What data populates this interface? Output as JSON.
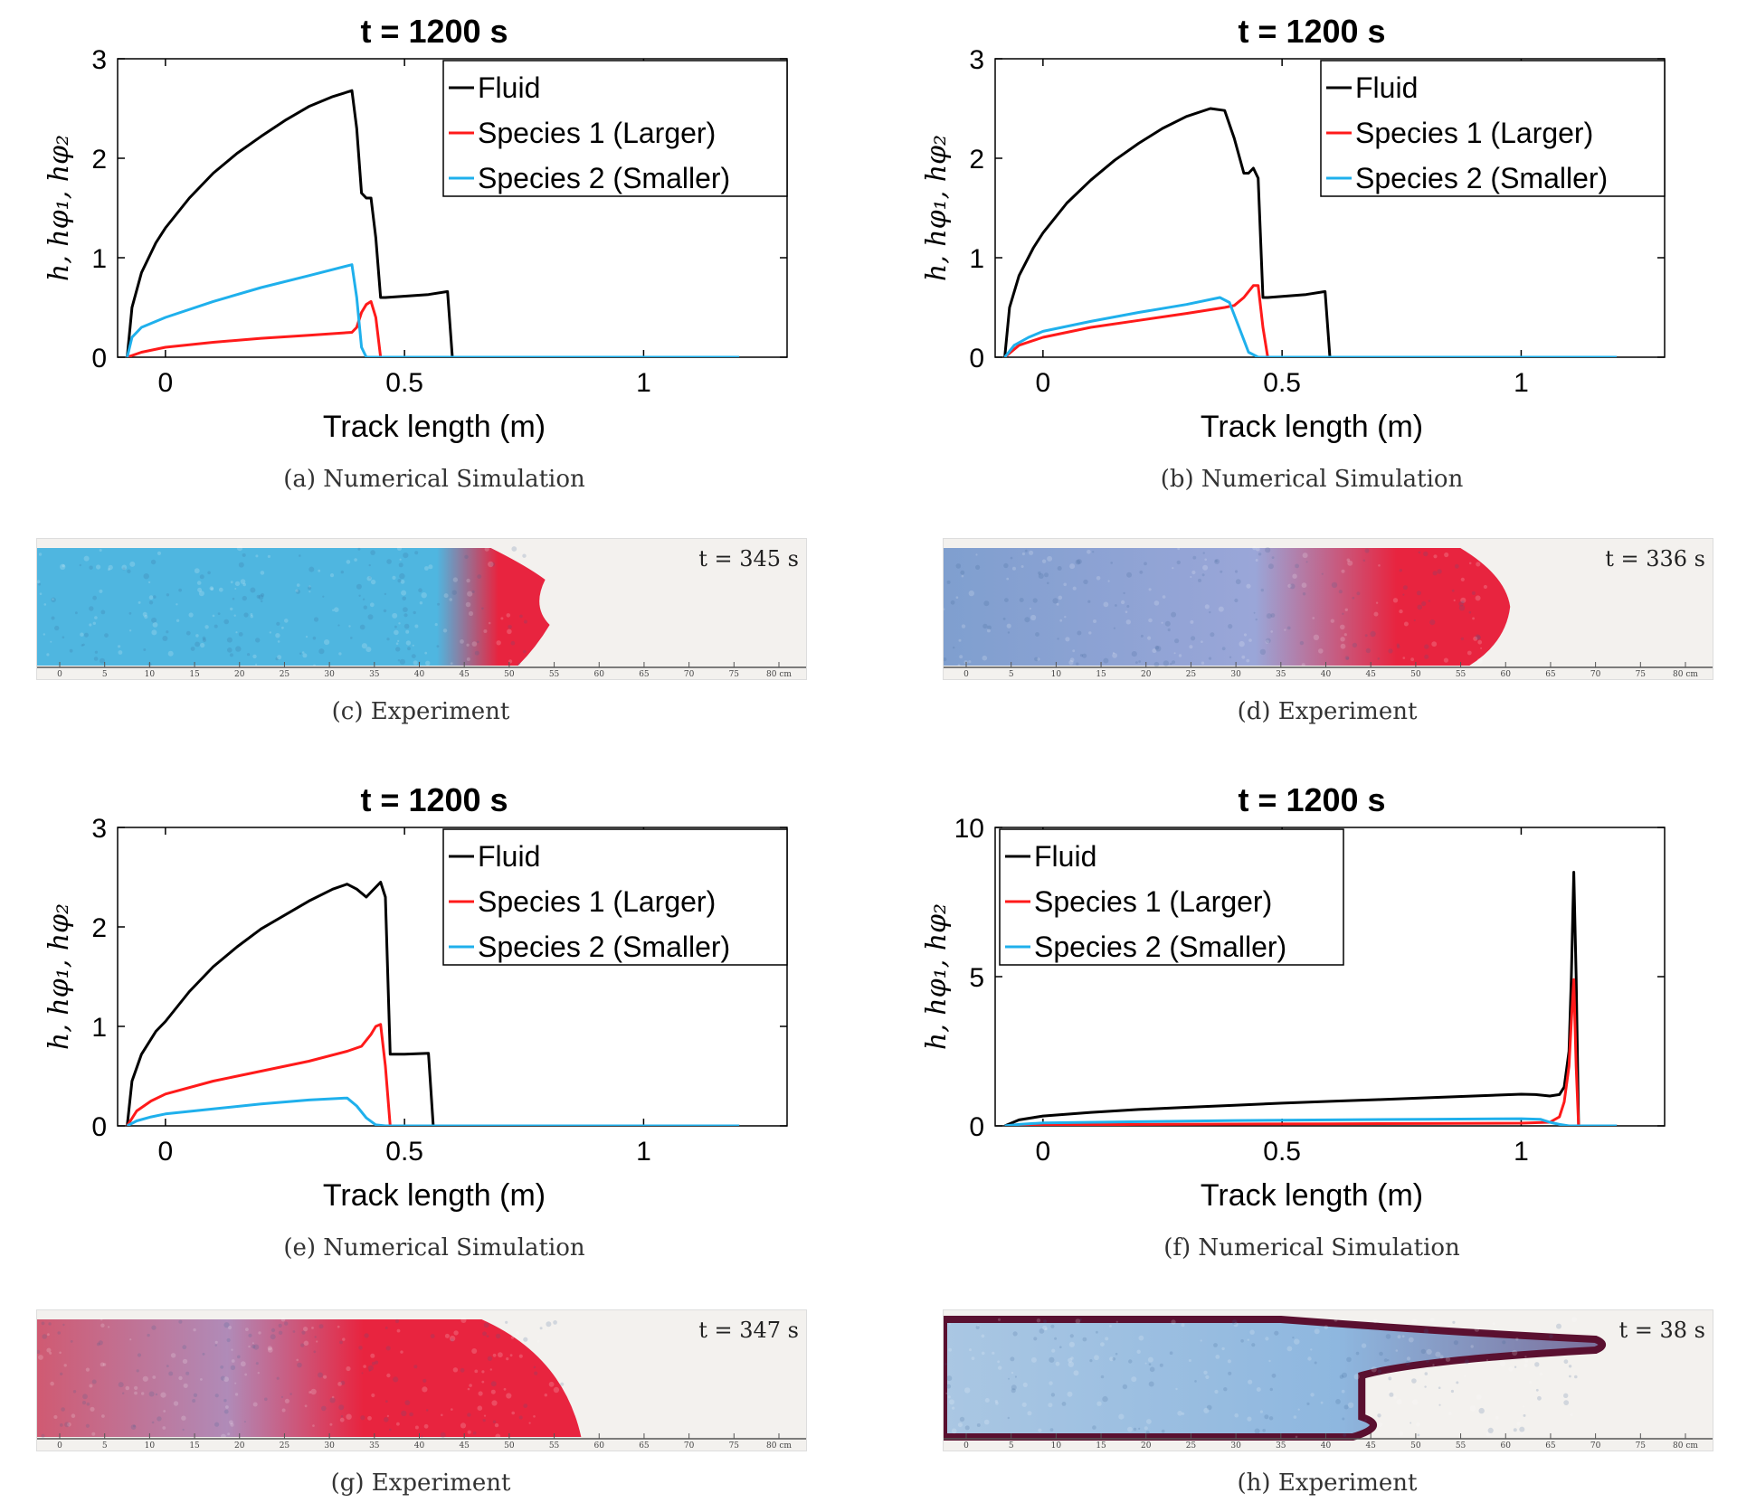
{
  "charts": [
    {
      "title": "t = 1200 s",
      "ylabel": "h, hφ₁, hφ₂",
      "xlabel": "Track length (m)",
      "xlim": [
        -0.1,
        1.3
      ],
      "ylim": [
        0,
        3
      ],
      "xticks": [
        0,
        0.5,
        1
      ],
      "xtick_labels": [
        "0",
        "0.5",
        "1"
      ],
      "yticks": [
        0,
        1,
        2,
        3
      ],
      "ytick_labels": [
        "0",
        "1",
        "2",
        "3"
      ],
      "legend": [
        "Fluid",
        "Species 1 (Larger)",
        "Species 2 (Smaller)"
      ],
      "caption": "(a) Numerical Simulation"
    },
    {
      "title": "t = 1200 s",
      "ylabel": "h, hφ₁, hφ₂",
      "xlabel": "Track length (m)",
      "xlim": [
        -0.1,
        1.3
      ],
      "ylim": [
        0,
        3
      ],
      "xticks": [
        0,
        0.5,
        1
      ],
      "xtick_labels": [
        "0",
        "0.5",
        "1"
      ],
      "yticks": [
        0,
        1,
        2,
        3
      ],
      "ytick_labels": [
        "0",
        "1",
        "2",
        "3"
      ],
      "legend": [
        "Fluid",
        "Species 1 (Larger)",
        "Species 2 (Smaller)"
      ],
      "caption": "(b) Numerical Simulation"
    },
    {
      "title": "t = 1200 s",
      "ylabel": "h, hφ₁, hφ₂",
      "xlabel": "Track length (m)",
      "xlim": [
        -0.1,
        1.3
      ],
      "ylim": [
        0,
        3
      ],
      "xticks": [
        0,
        0.5,
        1
      ],
      "xtick_labels": [
        "0",
        "0.5",
        "1"
      ],
      "yticks": [
        0,
        1,
        2,
        3
      ],
      "ytick_labels": [
        "0",
        "1",
        "2",
        "3"
      ],
      "legend": [
        "Fluid",
        "Species 1 (Larger)",
        "Species 2 (Smaller)"
      ],
      "caption": "(e) Numerical Simulation"
    },
    {
      "title": "t = 1200 s",
      "ylabel": "h, hφ₁, hφ₂",
      "xlabel": "Track length (m)",
      "xlim": [
        -0.1,
        1.3
      ],
      "ylim": [
        0,
        10
      ],
      "xticks": [
        0,
        0.5,
        1
      ],
      "xtick_labels": [
        "0",
        "0.5",
        "1"
      ],
      "yticks": [
        0,
        5,
        10
      ],
      "ytick_labels": [
        "0",
        "5",
        "10"
      ],
      "legend": [
        "Fluid",
        "Species 1 (Larger)",
        "Species 2 (Smaller)"
      ],
      "caption": "(f) Numerical Simulation"
    }
  ],
  "experiments": [
    {
      "time_label": "t = 345 s",
      "caption": "(c) Experiment",
      "front_cm": 54,
      "scale_labels": [
        "0",
        "5",
        "10",
        "15",
        "20",
        "25",
        "30",
        "35",
        "40",
        "45",
        "50",
        "55",
        "60",
        "65",
        "70",
        "75",
        "80 cm"
      ]
    },
    {
      "time_label": "t = 336 s",
      "caption": "(d) Experiment",
      "front_cm": 60,
      "scale_labels": [
        "0",
        "5",
        "10",
        "15",
        "20",
        "25",
        "30",
        "35",
        "40",
        "45",
        "50",
        "55",
        "60",
        "65",
        "70",
        "75",
        "80 cm"
      ]
    },
    {
      "time_label": "t = 347 s",
      "caption": "(g) Experiment",
      "front_cm": 58,
      "scale_labels": [
        "0",
        "5",
        "10",
        "15",
        "20",
        "25",
        "30",
        "35",
        "40",
        "45",
        "50",
        "55",
        "60",
        "65",
        "70",
        "75",
        "80 cm"
      ]
    },
    {
      "time_label": "t = 38 s",
      "caption": "(h) Experiment",
      "front_cm": 70,
      "scale_labels": [
        "0",
        "5",
        "10",
        "15",
        "20",
        "25",
        "30",
        "35",
        "40",
        "45",
        "50",
        "55",
        "60",
        "65",
        "70",
        "75",
        "80 cm"
      ]
    }
  ],
  "colors": {
    "fluid": "#000000",
    "species1": "#ff1a1a",
    "species2": "#1fb0ec",
    "photo_bg": "#f3f1ee",
    "blue_grain": "#4fb6e0",
    "red_grain": "#e8243f",
    "dark_front": "#5a1030"
  },
  "chart_data": [
    {
      "type": "line",
      "title": "t = 1200 s",
      "xlabel": "Track length (m)",
      "ylabel": "h, hφ₁, hφ₂",
      "xlim": [
        -0.1,
        1.3
      ],
      "ylim": [
        0,
        3
      ],
      "series": [
        {
          "name": "Fluid",
          "x": [
            -0.08,
            -0.07,
            -0.05,
            -0.02,
            0.0,
            0.05,
            0.1,
            0.15,
            0.2,
            0.25,
            0.3,
            0.35,
            0.39,
            0.4,
            0.41,
            0.42,
            0.43,
            0.44,
            0.45,
            0.46,
            0.55,
            0.59,
            0.6,
            0.61,
            1.2
          ],
          "y": [
            0.0,
            0.5,
            0.85,
            1.15,
            1.3,
            1.6,
            1.85,
            2.05,
            2.22,
            2.38,
            2.52,
            2.62,
            2.68,
            2.3,
            1.65,
            1.6,
            1.6,
            1.2,
            0.6,
            0.6,
            0.63,
            0.66,
            0.0,
            0.0,
            0.0
          ]
        },
        {
          "name": "Species 1 (Larger)",
          "x": [
            -0.08,
            -0.05,
            0.0,
            0.1,
            0.2,
            0.3,
            0.39,
            0.4,
            0.41,
            0.42,
            0.43,
            0.44,
            0.45,
            1.2
          ],
          "y": [
            0.0,
            0.05,
            0.1,
            0.15,
            0.19,
            0.22,
            0.25,
            0.3,
            0.45,
            0.53,
            0.56,
            0.4,
            0.0,
            0.0
          ]
        },
        {
          "name": "Species 2 (Smaller)",
          "x": [
            -0.08,
            -0.07,
            -0.05,
            0.0,
            0.1,
            0.2,
            0.3,
            0.39,
            0.4,
            0.41,
            0.42,
            0.45,
            1.2
          ],
          "y": [
            0.0,
            0.2,
            0.3,
            0.4,
            0.56,
            0.7,
            0.82,
            0.93,
            0.6,
            0.1,
            0.0,
            0.0,
            0.0
          ]
        }
      ]
    },
    {
      "type": "line",
      "title": "t = 1200 s",
      "xlabel": "Track length (m)",
      "ylabel": "h, hφ₁, hφ₂",
      "xlim": [
        -0.1,
        1.3
      ],
      "ylim": [
        0,
        3
      ],
      "series": [
        {
          "name": "Fluid",
          "x": [
            -0.08,
            -0.07,
            -0.05,
            -0.02,
            0.0,
            0.05,
            0.1,
            0.15,
            0.2,
            0.25,
            0.3,
            0.35,
            0.38,
            0.4,
            0.42,
            0.43,
            0.44,
            0.45,
            0.46,
            0.47,
            0.55,
            0.59,
            0.6,
            0.61,
            1.2
          ],
          "y": [
            0.0,
            0.5,
            0.82,
            1.1,
            1.25,
            1.55,
            1.78,
            1.98,
            2.15,
            2.3,
            2.42,
            2.5,
            2.48,
            2.2,
            1.85,
            1.85,
            1.9,
            1.8,
            0.6,
            0.6,
            0.63,
            0.66,
            0.0,
            0.0,
            0.0
          ]
        },
        {
          "name": "Species 1 (Larger)",
          "x": [
            -0.08,
            -0.05,
            0.0,
            0.1,
            0.2,
            0.3,
            0.38,
            0.4,
            0.42,
            0.44,
            0.45,
            0.46,
            0.47,
            1.2
          ],
          "y": [
            0.0,
            0.12,
            0.2,
            0.3,
            0.37,
            0.44,
            0.5,
            0.52,
            0.6,
            0.72,
            0.72,
            0.3,
            0.0,
            0.0
          ]
        },
        {
          "name": "Species 2 (Smaller)",
          "x": [
            -0.08,
            -0.06,
            -0.03,
            0.0,
            0.1,
            0.2,
            0.3,
            0.37,
            0.39,
            0.41,
            0.43,
            0.45,
            1.2
          ],
          "y": [
            0.0,
            0.12,
            0.2,
            0.26,
            0.36,
            0.45,
            0.53,
            0.6,
            0.55,
            0.3,
            0.05,
            0.0,
            0.0
          ]
        }
      ]
    },
    {
      "type": "line",
      "title": "t = 1200 s",
      "xlabel": "Track length (m)",
      "ylabel": "h, hφ₁, hφ₂",
      "xlim": [
        -0.1,
        1.3
      ],
      "ylim": [
        0,
        3
      ],
      "series": [
        {
          "name": "Fluid",
          "x": [
            -0.08,
            -0.07,
            -0.05,
            -0.02,
            0.0,
            0.05,
            0.1,
            0.15,
            0.2,
            0.25,
            0.3,
            0.35,
            0.38,
            0.4,
            0.42,
            0.43,
            0.45,
            0.46,
            0.47,
            0.5,
            0.55,
            0.56,
            0.57,
            1.2
          ],
          "y": [
            0.0,
            0.45,
            0.72,
            0.95,
            1.05,
            1.35,
            1.6,
            1.8,
            1.98,
            2.12,
            2.26,
            2.38,
            2.43,
            2.38,
            2.3,
            2.35,
            2.45,
            2.3,
            0.72,
            0.72,
            0.73,
            0.0,
            0.0,
            0.0
          ]
        },
        {
          "name": "Species 1 (Larger)",
          "x": [
            -0.08,
            -0.06,
            -0.03,
            0.0,
            0.1,
            0.2,
            0.3,
            0.38,
            0.41,
            0.43,
            0.44,
            0.45,
            0.46,
            0.47,
            1.2
          ],
          "y": [
            0.0,
            0.15,
            0.25,
            0.32,
            0.45,
            0.55,
            0.65,
            0.75,
            0.8,
            0.92,
            1.0,
            1.02,
            0.6,
            0.0,
            0.0
          ]
        },
        {
          "name": "Species 2 (Smaller)",
          "x": [
            -0.08,
            -0.06,
            -0.03,
            0.0,
            0.1,
            0.2,
            0.3,
            0.38,
            0.4,
            0.42,
            0.44,
            0.46,
            1.2
          ],
          "y": [
            0.0,
            0.05,
            0.09,
            0.12,
            0.17,
            0.22,
            0.26,
            0.28,
            0.2,
            0.08,
            0.01,
            0.0,
            0.0
          ]
        }
      ]
    },
    {
      "type": "line",
      "title": "t = 1200 s",
      "xlabel": "Track length (m)",
      "ylabel": "h, hφ₁, hφ₂",
      "xlim": [
        -0.1,
        1.3
      ],
      "ylim": [
        0,
        10
      ],
      "series": [
        {
          "name": "Fluid",
          "x": [
            -0.08,
            -0.05,
            0.0,
            0.1,
            0.2,
            0.3,
            0.4,
            0.5,
            0.6,
            0.7,
            0.8,
            0.9,
            1.0,
            1.03,
            1.06,
            1.08,
            1.09,
            1.1,
            1.105,
            1.11,
            1.115,
            1.12,
            1.2
          ],
          "y": [
            0.0,
            0.2,
            0.33,
            0.45,
            0.55,
            0.62,
            0.69,
            0.76,
            0.82,
            0.88,
            0.94,
            1.0,
            1.06,
            1.05,
            1.0,
            1.05,
            1.3,
            2.5,
            5.0,
            8.5,
            5.0,
            0.0,
            0.0
          ]
        },
        {
          "name": "Species 1 (Larger)",
          "x": [
            -0.08,
            0.0,
            0.2,
            0.4,
            0.6,
            0.8,
            1.0,
            1.06,
            1.08,
            1.09,
            1.1,
            1.105,
            1.11,
            1.115,
            1.12,
            1.2
          ],
          "y": [
            0.0,
            0.03,
            0.05,
            0.06,
            0.07,
            0.08,
            0.09,
            0.12,
            0.3,
            0.8,
            2.0,
            3.5,
            4.9,
            2.0,
            0.0,
            0.0
          ]
        },
        {
          "name": "Species 2 (Smaller)",
          "x": [
            -0.08,
            -0.05,
            0.0,
            0.2,
            0.4,
            0.6,
            0.8,
            1.0,
            1.04,
            1.06,
            1.08,
            1.1,
            1.2
          ],
          "y": [
            0.0,
            0.05,
            0.1,
            0.14,
            0.18,
            0.2,
            0.22,
            0.24,
            0.22,
            0.12,
            0.05,
            0.0,
            0.0
          ]
        }
      ]
    }
  ]
}
